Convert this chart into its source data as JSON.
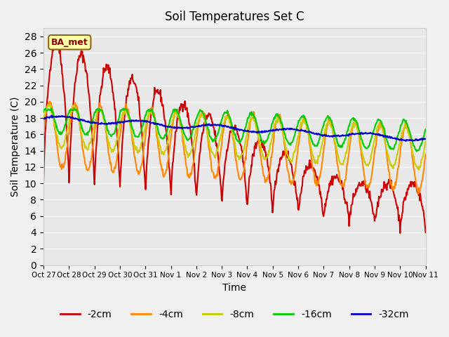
{
  "title": "Soil Temperatures Set C",
  "xlabel": "Time",
  "ylabel": "Soil Temperature (C)",
  "ylim": [
    0,
    29
  ],
  "yticks": [
    0,
    2,
    4,
    6,
    8,
    10,
    12,
    14,
    16,
    18,
    20,
    22,
    24,
    26,
    28
  ],
  "annotation_text": "BA_met",
  "bg_color": "#e8e8e8",
  "series_colors": {
    "-2cm": "#cc0000",
    "-4cm": "#ff8800",
    "-8cm": "#cccc00",
    "-16cm": "#00cc00",
    "-32cm": "#0000cc"
  },
  "xtick_labels": [
    "Oct 27",
    "Oct 28",
    "Oct 29",
    "Oct 30",
    "Oct 31",
    "Nov 1",
    "Nov 2",
    "Nov 3",
    "Nov 4",
    "Nov 5",
    "Nov 6",
    "Nov 7",
    "Nov 8",
    "Nov 9",
    "Nov 10",
    "Nov 11"
  ],
  "legend_labels": [
    "-2cm",
    "-4cm",
    "-8cm",
    "-16cm",
    "-32cm"
  ]
}
